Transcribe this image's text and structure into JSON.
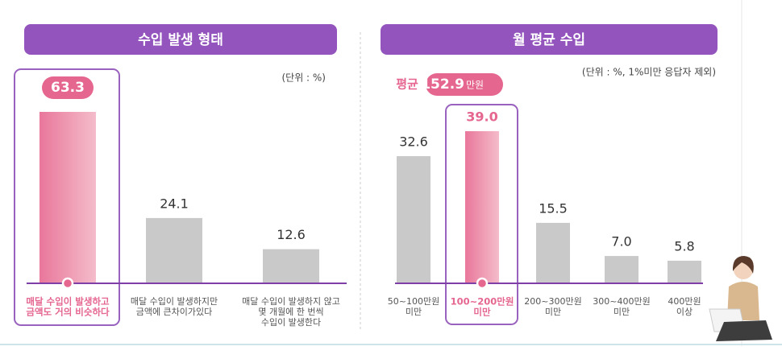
{
  "chart_data": [
    {
      "type": "bar",
      "title": "수입 발생 형태",
      "unit_note": "(단위 : %)",
      "categories": [
        [
          "매달 수입이 발생하고",
          "금액도 거의 비슷하다"
        ],
        [
          "매달 수입이 발생하지만",
          "금액에 큰차이가있다"
        ],
        [
          "매달 수입이 발생하지 않고",
          "몇 개월에 한 번씩",
          "수입이 발생한다"
        ]
      ],
      "values": [
        63.3,
        24.1,
        12.6
      ],
      "highlight": 0,
      "color": "#c9c9c9",
      "highlight_color": "#ec7fa0"
    },
    {
      "type": "bar",
      "title": "월 평균 수입",
      "unit_note": "(단위 : %, 1%미만 응답자 제외)",
      "average": {
        "label": "평균",
        "value": 152.9,
        "unit": "만원"
      },
      "categories": [
        [
          "50~100만원",
          "미만"
        ],
        [
          "100~200만원",
          "미만"
        ],
        [
          "200~300만원",
          "미만"
        ],
        [
          "300~400만원",
          "미만"
        ],
        [
          "400만원",
          "이상"
        ]
      ],
      "values": [
        32.6,
        39.0,
        15.5,
        7.0,
        5.8
      ],
      "value_labels": [
        "32.6",
        "39.0",
        "15.5",
        "7.0",
        "5.8"
      ],
      "highlight": 1,
      "color": "#c9c9c9",
      "highlight_color": "#ec7fa0"
    }
  ]
}
